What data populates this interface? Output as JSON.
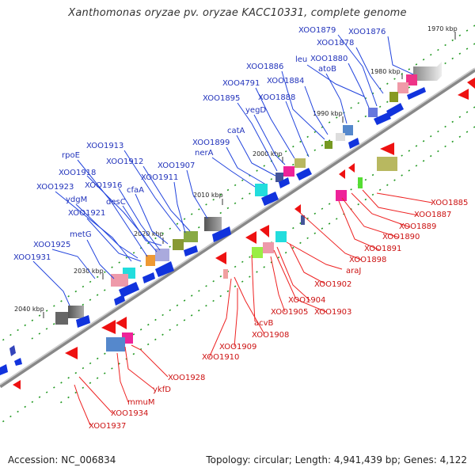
{
  "title": "Xanthomonas oryzae pv. oryzae KACC10331, complete genome",
  "footer": {
    "accession": "Accession: NC_006834",
    "topology": "Topology: circular; Length: 4,941,439 bp; Genes: 4,122"
  },
  "colors": {
    "forward_label": "#2233bb",
    "reverse_label": "#cc1111",
    "backbone": "#999999",
    "tick_green": "#228822"
  },
  "ticks": [
    "1970 kbp",
    "1980 kbp",
    "1990 kbp",
    "2000 kbp",
    "2010 kbp",
    "2020 kbp",
    "2030 kbp",
    "2040 kbp"
  ],
  "forward_labels": [
    "XOO1879",
    "XOO1876",
    "XOO1878",
    "leu",
    "XOO1880",
    "atoB",
    "XOO1886",
    "XOO4791",
    "XOO1884",
    "XOO1895",
    "XOO1888",
    "yegD",
    "catA",
    "XOO1899",
    "nerA",
    "XOO1913",
    "XOO1912",
    "rpoE",
    "XOO1907",
    "XOO1911",
    "XOO1918",
    "XOO1916",
    "cfaA",
    "XOO1923",
    "ydgM",
    "desC",
    "XOO1921",
    "metG",
    "XOO1925",
    "XOO1931"
  ],
  "reverse_labels": [
    "XOO1885",
    "XOO1887",
    "XOO1889",
    "XOO1890",
    "XOO1891",
    "XOO1898",
    "araJ",
    "XOO1902",
    "XOO1904",
    "XOO1905",
    "XOO1903",
    "acvB",
    "XOO1908",
    "XOO1909",
    "XOO1910",
    "XOO1928",
    "ykfD",
    "mmuM",
    "XOO1934",
    "XOO1937"
  ]
}
